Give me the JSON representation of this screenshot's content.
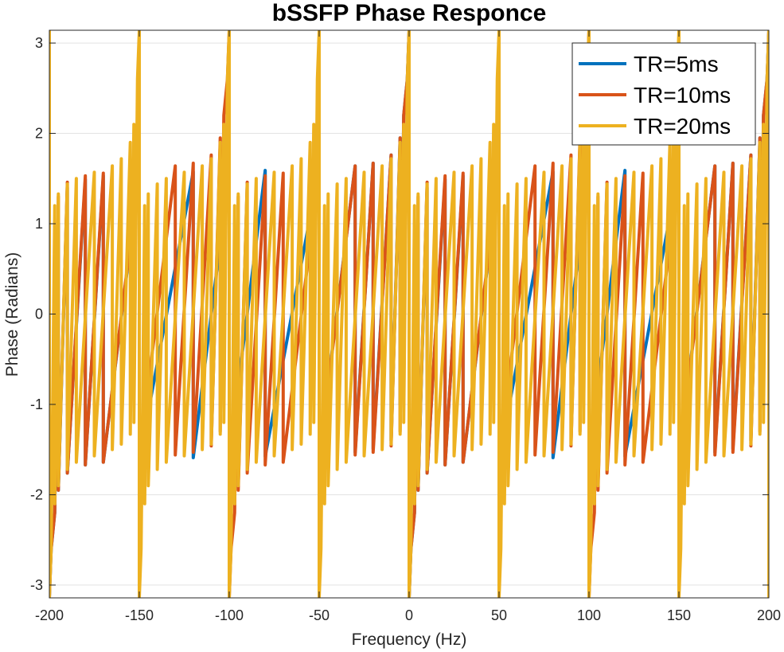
{
  "chart_data": {
    "type": "line",
    "title": "bSSFP Phase Responce",
    "xlabel": "Frequency (Hz)",
    "ylabel": "Phase (Radians)",
    "xlim": [
      -200,
      200
    ],
    "ylim": [
      -3.1416,
      3.1416
    ],
    "xticks": [
      -200,
      -150,
      -100,
      -50,
      0,
      50,
      100,
      150,
      200
    ],
    "xtick_labels": [
      "-200",
      "-150",
      "-100",
      "-50",
      "0",
      "50",
      "100",
      "150",
      "200"
    ],
    "yticks": [
      -3,
      -2,
      -1,
      0,
      1,
      2,
      3
    ],
    "ytick_labels": [
      "-3",
      "-2",
      "-1",
      "0",
      "1",
      "2",
      "3"
    ],
    "grid": true,
    "legend_position": "top-right",
    "series": [
      {
        "name": "TR=5ms",
        "color": "#0072BD",
        "period_hz": 200,
        "x": [
          -200,
          -199,
          -197,
          -195,
          -190,
          -180,
          -170,
          -150,
          -120,
          -100,
          -80,
          -50,
          -30,
          -20,
          -10,
          -5,
          0,
          5,
          10,
          20,
          30,
          50,
          80,
          100,
          120,
          150,
          170,
          180,
          190,
          195,
          197,
          199,
          200
        ],
        "y": [
          -3.14,
          -2.6,
          -2.2,
          -1.95,
          -1.76,
          -1.67,
          -1.64,
          -1.61,
          -1.59,
          -1.58,
          -1.575,
          -1.56,
          -1.53,
          -1.49,
          -1.4,
          -1.0,
          0.0,
          1.0,
          1.4,
          1.49,
          1.53,
          1.56,
          1.575,
          1.58,
          1.59,
          1.61,
          1.64,
          1.67,
          1.76,
          1.95,
          2.2,
          2.6,
          3.14
        ]
      },
      {
        "name": "TR=10ms",
        "color": "#D95319",
        "period_hz": 100,
        "x": [
          -100,
          -99,
          -97,
          -95,
          -90,
          -80,
          -70,
          -50,
          -30,
          -20,
          -10,
          -5,
          0,
          5,
          10,
          20,
          30,
          50,
          70,
          80,
          90,
          95,
          97,
          99,
          100
        ],
        "y": [
          -3.14,
          -2.6,
          -2.2,
          -1.95,
          -1.76,
          -1.67,
          -1.64,
          -1.59,
          -1.56,
          -1.53,
          -1.46,
          -1.3,
          0.0,
          1.3,
          1.46,
          1.53,
          1.56,
          1.59,
          1.64,
          1.67,
          1.76,
          1.95,
          2.2,
          2.6,
          3.14
        ]
      },
      {
        "name": "TR=20ms",
        "color": "#EDB120",
        "period_hz": 50,
        "x": [
          -50,
          -49,
          -47,
          -45,
          -40,
          -35,
          -25,
          -15,
          -10,
          -5,
          -3,
          0,
          3,
          5,
          10,
          15,
          25,
          35,
          40,
          45,
          47,
          49,
          50
        ],
        "y": [
          -3.14,
          -2.6,
          -2.1,
          -1.9,
          -1.72,
          -1.64,
          -1.57,
          -1.5,
          -1.44,
          -1.33,
          -1.2,
          0.0,
          1.2,
          1.33,
          1.44,
          1.5,
          1.57,
          1.64,
          1.72,
          1.9,
          2.1,
          2.6,
          3.14
        ]
      }
    ]
  }
}
